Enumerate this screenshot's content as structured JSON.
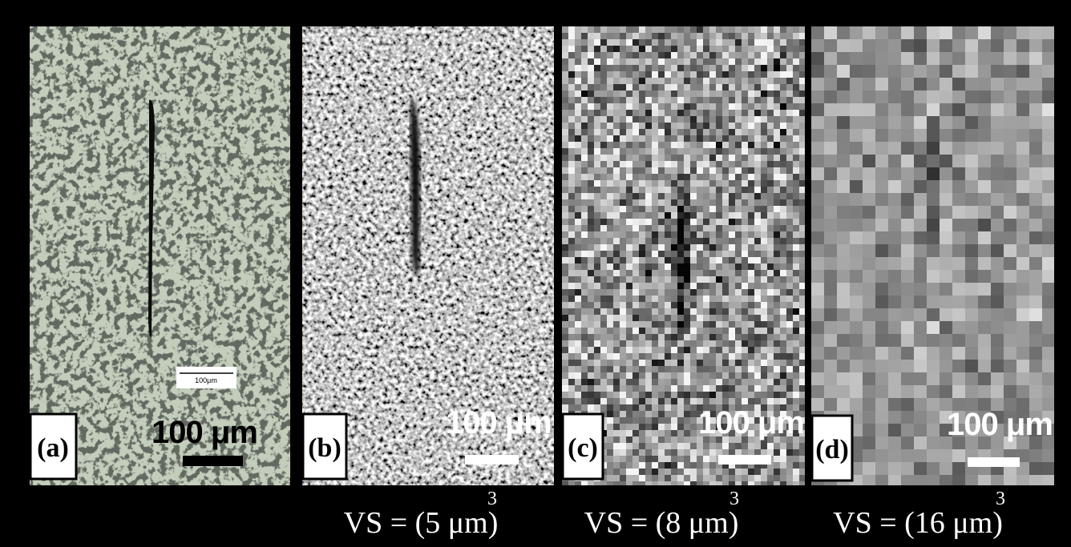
{
  "panels": [
    {
      "label": "(a)",
      "scale_bar": "100 μm",
      "inset_scale": "100μm"
    },
    {
      "label": "(b)",
      "scale_bar": "100 μm",
      "caption": {
        "text": "VS = (5 μm)",
        "exponent": "3"
      }
    },
    {
      "label": "(c)",
      "scale_bar": "100 μm",
      "caption": {
        "text": "VS = (8 μm)",
        "exponent": "3"
      }
    },
    {
      "label": "(d)",
      "scale_bar": "100 μm",
      "caption": {
        "text": "VS = (16 μm)",
        "exponent": "3"
      }
    }
  ]
}
